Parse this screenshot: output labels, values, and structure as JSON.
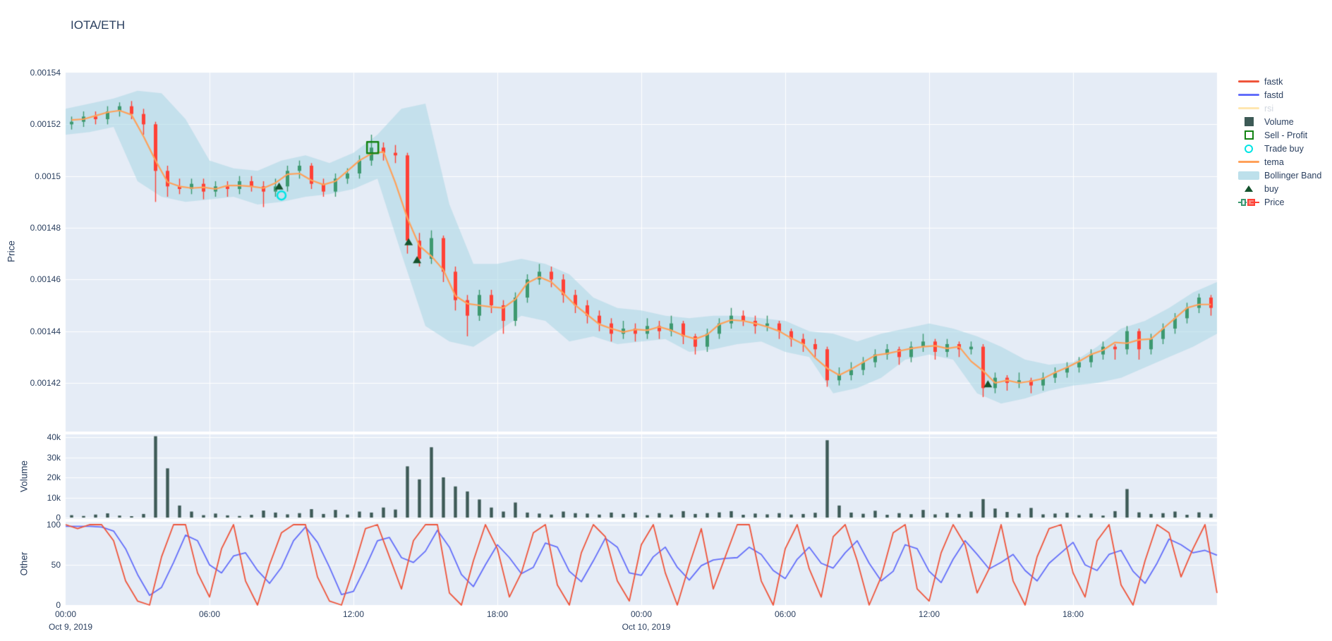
{
  "title": "IOTA/ETH",
  "colors": {
    "paper": "#ffffff",
    "plot_background": "#E5ECF6",
    "gridline": "#ffffff",
    "text": "#2a3f5f",
    "candle_up": "#3D9970",
    "candle_down": "#FF4136",
    "bollinger_fill": "#ADD8E6",
    "bollinger_opacity": 0.6,
    "tema": "#FFA15A",
    "fastk": "#EF553B",
    "fastd": "#636EFA",
    "rsi": "#FECB52",
    "volume_bar": "#3D5A56",
    "buy_marker": "#14532D",
    "sell_profit_marker": "#128312",
    "trade_buy_marker": "#00E5E5"
  },
  "legend": {
    "items": [
      {
        "label": "fastk",
        "swatch": "line",
        "color": "#EF553B",
        "faded": false
      },
      {
        "label": "fastd",
        "swatch": "line",
        "color": "#636EFA",
        "faded": false
      },
      {
        "label": "rsi",
        "swatch": "line",
        "color": "#FECB52",
        "faded": true
      },
      {
        "label": "Volume",
        "swatch": "square-filled",
        "color": "#3D5A56",
        "faded": false
      },
      {
        "label": "Sell - Profit",
        "swatch": "square-open",
        "color": "#128312",
        "faded": false
      },
      {
        "label": "Trade buy",
        "swatch": "circle-open",
        "color": "#00E5E5",
        "faded": false
      },
      {
        "label": "tema",
        "swatch": "line",
        "color": "#FFA15A",
        "faded": false
      },
      {
        "label": "Bollinger Band",
        "swatch": "band",
        "color": "#ADD8E6",
        "faded": false
      },
      {
        "label": "buy",
        "swatch": "triangle-up",
        "color": "#14532D",
        "faded": false
      },
      {
        "label": "Price",
        "swatch": "candlestick",
        "color": "#3D9970",
        "color2": "#FF4136",
        "faded": false
      }
    ]
  },
  "axes": {
    "price": {
      "title": "Price",
      "tick_labels": [
        "0.00154",
        "0.00152",
        "0.0015",
        "0.00148",
        "0.00146",
        "0.00144",
        "0.00142"
      ],
      "tick_values": [
        154.0,
        152.0,
        150.0,
        148.0,
        146.0,
        144.0,
        142.0
      ]
    },
    "volume": {
      "title": "Volume",
      "tick_labels": [
        "40k",
        "30k",
        "20k",
        "10k",
        "0"
      ],
      "tick_values": [
        40,
        30,
        20,
        10,
        0
      ]
    },
    "other": {
      "title": "Other",
      "tick_labels": [
        "100",
        "50",
        "0"
      ],
      "tick_values": [
        100,
        50,
        0
      ]
    },
    "x": {
      "tick_labels": [
        "00:00",
        "06:00",
        "12:00",
        "18:00",
        "00:00",
        "06:00",
        "12:00",
        "18:00"
      ],
      "tick_values_hours": [
        0,
        6,
        12,
        18,
        24,
        30,
        36,
        42
      ],
      "date_labels": [
        {
          "text": "Oct 9, 2019",
          "hours": 0
        },
        {
          "text": "Oct 10, 2019",
          "hours": 24
        }
      ]
    }
  },
  "chart_data": [
    {
      "type": "candlestick",
      "panel": "price",
      "pair": "IOTA/ETH",
      "x_start": "2019-10-09 00:00",
      "candle_interval_hours": 0.5,
      "first_candle_center_hours": 0.25,
      "price_unit_multiplier": 1e-05,
      "note": "ohlc, bollinger and marker prices are in units of 0.00001 ETH (e.g. 152.1 = 0.001521). Values estimated from gridlines.",
      "ylim": [
        140.1,
        154.0
      ],
      "ohlc": [
        [
          152.0,
          152.3,
          151.8,
          152.1
        ],
        [
          152.1,
          152.5,
          151.9,
          152.3
        ],
        [
          152.3,
          152.5,
          152.0,
          152.2
        ],
        [
          152.2,
          152.7,
          152.0,
          152.5
        ],
        [
          152.5,
          152.85,
          152.3,
          152.7
        ],
        [
          152.7,
          152.9,
          152.2,
          152.4
        ],
        [
          152.4,
          152.6,
          151.6,
          152.0
        ],
        [
          152.0,
          152.1,
          149.0,
          150.2
        ],
        [
          150.2,
          150.4,
          149.2,
          149.6
        ],
        [
          149.6,
          149.9,
          149.3,
          149.5
        ],
        [
          149.5,
          149.9,
          149.3,
          149.7
        ],
        [
          149.7,
          149.9,
          149.1,
          149.4
        ],
        [
          149.4,
          149.8,
          149.2,
          149.6
        ],
        [
          149.6,
          149.8,
          149.2,
          149.5
        ],
        [
          149.5,
          150.0,
          149.3,
          149.8
        ],
        [
          149.8,
          150.0,
          149.4,
          149.6
        ],
        [
          149.6,
          149.8,
          148.8,
          149.4
        ],
        [
          149.4,
          149.9,
          149.2,
          149.6
        ],
        [
          149.6,
          150.4,
          149.4,
          150.2
        ],
        [
          150.2,
          150.6,
          149.9,
          150.4
        ],
        [
          150.4,
          150.5,
          149.5,
          149.7
        ],
        [
          149.7,
          149.9,
          149.2,
          149.4
        ],
        [
          149.4,
          150.1,
          149.2,
          149.9
        ],
        [
          149.9,
          150.3,
          149.7,
          150.1
        ],
        [
          150.1,
          150.8,
          149.9,
          150.6
        ],
        [
          150.6,
          151.6,
          150.4,
          151.1
        ],
        [
          151.1,
          151.3,
          150.6,
          150.9
        ],
        [
          150.9,
          151.2,
          150.5,
          150.8
        ],
        [
          150.8,
          150.9,
          147.0,
          147.5
        ],
        [
          147.5,
          147.8,
          146.5,
          146.8
        ],
        [
          146.8,
          147.9,
          146.6,
          147.6
        ],
        [
          147.6,
          147.7,
          145.9,
          146.3
        ],
        [
          146.3,
          146.5,
          144.8,
          145.2
        ],
        [
          145.2,
          145.4,
          143.8,
          144.6
        ],
        [
          144.6,
          145.6,
          144.4,
          145.4
        ],
        [
          145.4,
          145.6,
          144.7,
          145.0
        ],
        [
          145.0,
          145.2,
          143.9,
          144.4
        ],
        [
          144.4,
          145.5,
          144.2,
          145.3
        ],
        [
          145.3,
          146.2,
          145.1,
          146.0
        ],
        [
          146.0,
          146.6,
          145.8,
          146.3
        ],
        [
          146.3,
          146.5,
          145.7,
          146.0
        ],
        [
          146.0,
          146.2,
          145.1,
          145.4
        ],
        [
          145.4,
          145.6,
          144.7,
          145.0
        ],
        [
          145.0,
          145.2,
          144.3,
          144.6
        ],
        [
          144.6,
          144.8,
          144.0,
          144.3
        ],
        [
          144.3,
          144.5,
          143.6,
          143.9
        ],
        [
          143.9,
          144.4,
          143.7,
          144.1
        ],
        [
          144.1,
          144.3,
          143.6,
          143.9
        ],
        [
          143.9,
          144.5,
          143.7,
          144.2
        ],
        [
          144.2,
          144.4,
          143.7,
          144.0
        ],
        [
          144.0,
          144.6,
          143.8,
          144.3
        ],
        [
          144.3,
          144.4,
          143.5,
          143.8
        ],
        [
          143.8,
          143.9,
          143.1,
          143.4
        ],
        [
          143.4,
          144.1,
          143.2,
          143.9
        ],
        [
          143.9,
          144.5,
          143.7,
          144.3
        ],
        [
          144.3,
          144.9,
          144.1,
          144.6
        ],
        [
          144.6,
          144.8,
          144.2,
          144.4
        ],
        [
          144.4,
          144.6,
          143.9,
          144.2
        ],
        [
          144.2,
          144.6,
          144.0,
          144.3
        ],
        [
          144.3,
          144.4,
          143.7,
          144.0
        ],
        [
          144.0,
          144.1,
          143.4,
          143.7
        ],
        [
          143.7,
          143.9,
          143.2,
          143.5
        ],
        [
          143.5,
          143.7,
          143.0,
          143.3
        ],
        [
          143.3,
          143.4,
          141.85,
          142.1
        ],
        [
          142.1,
          142.6,
          141.9,
          142.3
        ],
        [
          142.3,
          142.8,
          142.1,
          142.5
        ],
        [
          142.5,
          143.0,
          142.3,
          142.8
        ],
        [
          142.8,
          143.3,
          142.6,
          143.1
        ],
        [
          143.1,
          143.5,
          142.9,
          143.3
        ],
        [
          143.3,
          143.4,
          142.7,
          143.0
        ],
        [
          143.0,
          143.6,
          142.8,
          143.4
        ],
        [
          143.4,
          143.9,
          143.2,
          143.6
        ],
        [
          143.6,
          143.7,
          142.9,
          143.2
        ],
        [
          143.2,
          143.7,
          143.0,
          143.5
        ],
        [
          143.5,
          143.6,
          143.0,
          143.3
        ],
        [
          143.3,
          143.6,
          143.1,
          143.4
        ],
        [
          143.4,
          143.5,
          141.45,
          141.8
        ],
        [
          141.8,
          142.4,
          141.6,
          142.2
        ],
        [
          142.2,
          142.3,
          141.7,
          142.0
        ],
        [
          142.0,
          142.4,
          141.8,
          142.1
        ],
        [
          142.1,
          142.2,
          141.6,
          141.9
        ],
        [
          141.9,
          142.4,
          141.7,
          142.2
        ],
        [
          142.2,
          142.6,
          142.0,
          142.4
        ],
        [
          142.4,
          142.8,
          142.2,
          142.6
        ],
        [
          142.6,
          143.0,
          142.4,
          142.8
        ],
        [
          142.8,
          143.3,
          142.6,
          143.1
        ],
        [
          143.1,
          143.6,
          142.9,
          143.4
        ],
        [
          143.4,
          143.5,
          142.9,
          143.3
        ],
        [
          143.3,
          144.2,
          143.1,
          144.0
        ],
        [
          144.0,
          144.1,
          142.9,
          143.3
        ],
        [
          143.3,
          143.9,
          143.1,
          143.7
        ],
        [
          143.7,
          144.3,
          143.5,
          144.1
        ],
        [
          144.1,
          144.7,
          143.9,
          144.5
        ],
        [
          144.5,
          145.1,
          144.3,
          144.9
        ],
        [
          144.9,
          145.45,
          144.7,
          145.3
        ],
        [
          145.3,
          145.4,
          144.6,
          144.9
        ]
      ],
      "bollinger_band": {
        "interval_hours": 1,
        "upper": [
          152.6,
          152.8,
          153.0,
          153.3,
          153.2,
          152.2,
          150.6,
          150.3,
          150.2,
          150.6,
          150.8,
          150.5,
          150.9,
          151.6,
          152.6,
          152.8,
          148.9,
          146.6,
          146.6,
          146.8,
          146.6,
          146.2,
          145.3,
          144.9,
          144.8,
          144.6,
          144.5,
          144.6,
          144.6,
          144.5,
          144.4,
          144.0,
          143.9,
          143.6,
          143.9,
          144.1,
          144.3,
          144.1,
          143.8,
          143.4,
          142.9,
          142.7,
          142.8,
          143.4,
          144.1,
          144.4,
          144.9,
          145.5,
          145.9
        ],
        "lower": [
          151.6,
          151.7,
          151.9,
          149.8,
          149.2,
          149.0,
          149.1,
          149.2,
          148.9,
          149.0,
          149.2,
          149.3,
          149.5,
          149.9,
          147.0,
          144.2,
          143.6,
          143.4,
          144.0,
          144.6,
          144.4,
          143.6,
          143.8,
          143.5,
          143.6,
          143.7,
          143.2,
          143.3,
          143.5,
          143.6,
          143.2,
          143.0,
          141.6,
          141.8,
          142.2,
          142.9,
          143.1,
          142.9,
          141.6,
          141.2,
          141.4,
          141.7,
          141.9,
          142.0,
          142.2,
          142.6,
          143.0,
          143.4,
          143.9
        ]
      },
      "tema": "smoothed close (3-point moving average of candle closes)",
      "markers": {
        "buy": [
          [
            8.9,
            149.6
          ],
          [
            14.3,
            147.45
          ],
          [
            14.65,
            146.75
          ],
          [
            38.45,
            141.95
          ]
        ],
        "trade_buy": [
          [
            9.0,
            149.25
          ]
        ],
        "sell_profit": [
          [
            12.8,
            151.1
          ]
        ]
      },
      "hidden_series": [
        {
          "name": "rsi",
          "visible": false
        }
      ]
    },
    {
      "type": "bar",
      "panel": "volume",
      "ylabel": "Volume",
      "ylim": [
        0,
        41.5
      ],
      "values_unit": "thousands",
      "bar_interval_hours": 0.5,
      "values_k": [
        1.2,
        0.8,
        1.5,
        2.1,
        1.0,
        0.7,
        1.8,
        40.5,
        24.5,
        6.0,
        3.0,
        1.2,
        2.0,
        1.1,
        0.8,
        1.4,
        3.5,
        2.5,
        1.6,
        2.2,
        4.2,
        1.8,
        3.8,
        1.5,
        3.0,
        2.5,
        5.0,
        4.0,
        25.5,
        19.0,
        35.0,
        20.0,
        15.5,
        13.0,
        9.0,
        5.0,
        3.0,
        7.5,
        2.5,
        2.0,
        1.5,
        3.0,
        2.2,
        2.0,
        1.5,
        2.5,
        1.8,
        2.5,
        1.2,
        2.2,
        1.5,
        3.2,
        1.8,
        2.2,
        2.6,
        3.2,
        1.4,
        2.0,
        1.6,
        2.2,
        1.5,
        1.8,
        2.4,
        38.5,
        6.0,
        2.5,
        1.9,
        3.4,
        1.4,
        2.2,
        1.7,
        3.8,
        1.6,
        2.4,
        1.8,
        3.0,
        9.2,
        4.5,
        2.8,
        2.0,
        4.8,
        1.6,
        2.0,
        2.4,
        1.2,
        2.0,
        1.0,
        3.2,
        14.2,
        2.6,
        1.8,
        2.2,
        3.0,
        1.4,
        2.6,
        1.9
      ]
    },
    {
      "type": "line",
      "panel": "other",
      "ylabel": "Other",
      "ylim": [
        0,
        100
      ],
      "point_interval_hours": 0.5,
      "series": [
        {
          "name": "fastk",
          "color": "#EF553B",
          "values": [
            100,
            95,
            100,
            100,
            80,
            30,
            5,
            0,
            60,
            100,
            100,
            40,
            10,
            70,
            100,
            30,
            0,
            50,
            90,
            100,
            100,
            35,
            5,
            0,
            45,
            95,
            100,
            60,
            20,
            80,
            100,
            100,
            15,
            0,
            55,
            100,
            70,
            10,
            40,
            90,
            100,
            25,
            0,
            65,
            100,
            85,
            30,
            5,
            75,
            100,
            40,
            0,
            50,
            95,
            20,
            60,
            100,
            100,
            30,
            0,
            70,
            100,
            45,
            10,
            85,
            100,
            55,
            0,
            35,
            90,
            100,
            20,
            5,
            65,
            100,
            75,
            15,
            45,
            100,
            30,
            0,
            60,
            95,
            100,
            40,
            10,
            80,
            100,
            25,
            0,
            55,
            100,
            90,
            35,
            70,
            100,
            15
          ]
        },
        {
          "name": "fastd",
          "color": "#636EFA",
          "values": [
            98,
            98,
            98,
            97,
            92,
            70,
            38,
            12,
            22,
            53,
            87,
            80,
            50,
            40,
            61,
            65,
            43,
            27,
            47,
            80,
            97,
            78,
            47,
            13,
            17,
            47,
            80,
            84,
            59,
            53,
            67,
            93,
            72,
            38,
            23,
            50,
            75,
            59,
            39,
            47,
            77,
            72,
            42,
            29,
            55,
            83,
            72,
            40,
            37,
            60,
            72,
            47,
            31,
            49,
            56,
            58,
            59,
            72,
            63,
            43,
            33,
            57,
            72,
            52,
            46,
            65,
            80,
            52,
            30,
            42,
            75,
            70,
            42,
            28,
            57,
            80,
            63,
            45,
            53,
            63,
            43,
            30,
            52,
            65,
            78,
            50,
            43,
            63,
            68,
            42,
            27,
            52,
            82,
            75,
            65,
            68,
            62
          ]
        }
      ]
    }
  ]
}
